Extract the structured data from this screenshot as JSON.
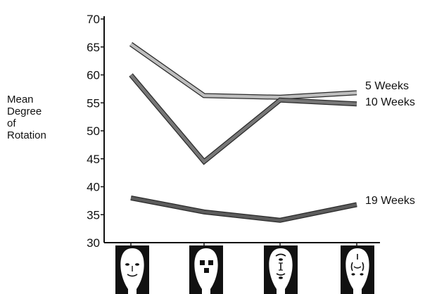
{
  "chart_data": {
    "type": "line",
    "ylabel_lines": [
      "Mean",
      "Degree",
      "of",
      "Rotation"
    ],
    "xlabel": "",
    "categories": [
      "face-normal",
      "face-scrambled",
      "face-vertical-features",
      "face-circular-features"
    ],
    "ylim": [
      30,
      70
    ],
    "yticks": [
      30,
      35,
      40,
      45,
      50,
      55,
      60,
      65,
      70
    ],
    "grid": false,
    "series": [
      {
        "name": "5 Weeks",
        "values": [
          65.5,
          56.3,
          56.0,
          56.8
        ],
        "color": "#bdbdbd"
      },
      {
        "name": "10 Weeks",
        "values": [
          60.0,
          44.5,
          55.5,
          54.8
        ],
        "color": "#777777"
      },
      {
        "name": "19 Weeks",
        "values": [
          38.0,
          35.5,
          34.0,
          36.8
        ],
        "color": "#5c5c5c"
      }
    ]
  }
}
